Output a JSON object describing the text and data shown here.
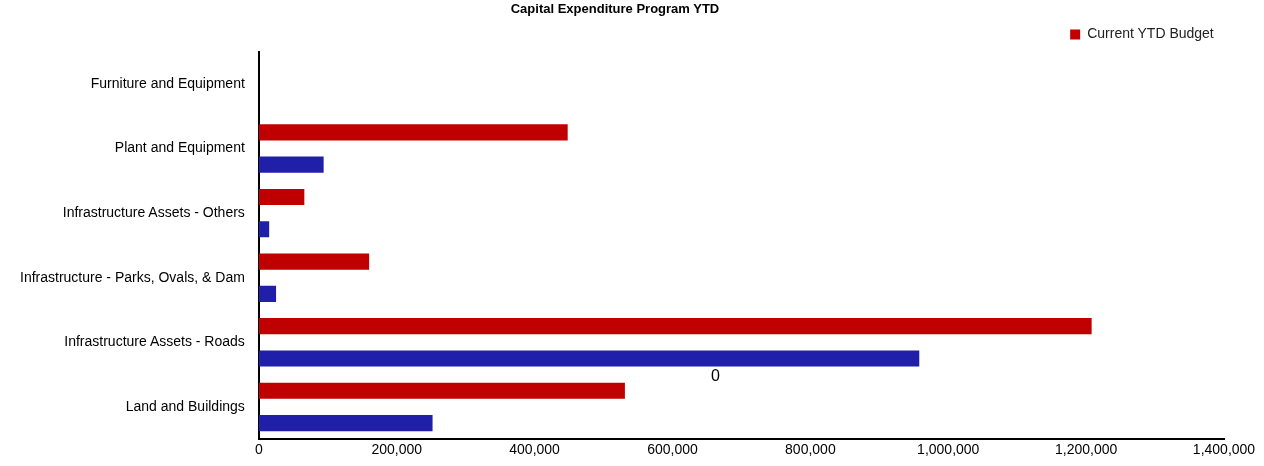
{
  "chart_data": {
    "type": "bar",
    "orientation": "horizontal",
    "title": "Capital Expenditure Program YTD",
    "categories": [
      "Furniture and Equipment",
      "Plant and Equipment",
      "Infrastructure Assets - Others",
      "Infrastructure - Parks, Ovals, & Dam",
      "Infrastructure Assets - Roads",
      "Land and Buildings"
    ],
    "series": [
      {
        "name": "Current YTD Budget",
        "color": "#c00000",
        "values": [
          0,
          448000,
          66000,
          160000,
          1208000,
          531000
        ]
      },
      {
        "color": "#1f1faa",
        "values": [
          0,
          94000,
          15000,
          25000,
          958000,
          252000
        ]
      }
    ],
    "xlim": [
      0,
      1400000
    ],
    "xticks": [
      {
        "value": 0,
        "label": "0"
      },
      {
        "value": 200000,
        "label": "200,000"
      },
      {
        "value": 400000,
        "label": "400,000"
      },
      {
        "value": 600000,
        "label": "600,000"
      },
      {
        "value": 800000,
        "label": "800,000"
      },
      {
        "value": 1000000,
        "label": "1,000,000"
      },
      {
        "value": 1200000,
        "label": "1,200,000"
      },
      {
        "value": 1400000,
        "label": "1,400,000"
      }
    ],
    "grid": false,
    "legend": "top right",
    "annotations": [
      "0"
    ]
  }
}
